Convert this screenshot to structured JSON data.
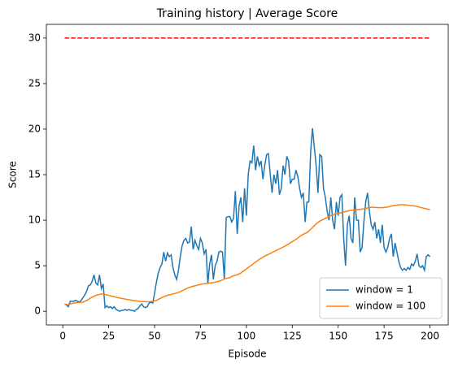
{
  "chart_data": {
    "type": "line",
    "title": "Training history | Average Score",
    "xlabel": "Episode",
    "ylabel": "Score",
    "x": [
      1,
      2,
      3,
      4,
      5,
      6,
      7,
      8,
      9,
      10,
      11,
      12,
      13,
      14,
      15,
      16,
      17,
      18,
      19,
      20,
      21,
      22,
      23,
      24,
      25,
      26,
      27,
      28,
      29,
      30,
      31,
      32,
      33,
      34,
      35,
      36,
      37,
      38,
      39,
      40,
      41,
      42,
      43,
      44,
      45,
      46,
      47,
      48,
      49,
      50,
      51,
      52,
      53,
      54,
      55,
      56,
      57,
      58,
      59,
      60,
      61,
      62,
      63,
      64,
      65,
      66,
      67,
      68,
      69,
      70,
      71,
      72,
      73,
      74,
      75,
      76,
      77,
      78,
      79,
      80,
      81,
      82,
      83,
      84,
      85,
      86,
      87,
      88,
      89,
      90,
      91,
      92,
      93,
      94,
      95,
      96,
      97,
      98,
      99,
      100,
      101,
      102,
      103,
      104,
      105,
      106,
      107,
      108,
      109,
      110,
      111,
      112,
      113,
      114,
      115,
      116,
      117,
      118,
      119,
      120,
      121,
      122,
      123,
      124,
      125,
      126,
      127,
      128,
      129,
      130,
      131,
      132,
      133,
      134,
      135,
      136,
      137,
      138,
      139,
      140,
      141,
      142,
      143,
      144,
      145,
      146,
      147,
      148,
      149,
      150,
      151,
      152,
      153,
      154,
      155,
      156,
      157,
      158,
      159,
      160,
      161,
      162,
      163,
      164,
      165,
      166,
      167,
      168,
      169,
      170,
      171,
      172,
      173,
      174,
      175,
      176,
      177,
      178,
      179,
      180,
      181,
      182,
      183,
      184,
      185,
      186,
      187,
      188,
      189,
      190,
      191,
      192,
      193,
      194,
      195,
      196,
      197,
      198,
      199,
      200
    ],
    "series": [
      {
        "name": "window = 1",
        "color": "#1f77b4",
        "values": [
          0.8,
          0.7,
          0.5,
          1.1,
          1.1,
          1.1,
          1.2,
          1.1,
          1.0,
          1.2,
          1.5,
          1.8,
          2.2,
          2.8,
          2.9,
          3.3,
          4.0,
          3.1,
          2.9,
          4.0,
          2.5,
          3.0,
          0.4,
          0.6,
          0.4,
          0.5,
          0.3,
          0.5,
          0.2,
          0.1,
          0.0,
          0.1,
          0.1,
          0.2,
          0.1,
          0.2,
          0.1,
          0.1,
          0.0,
          0.2,
          0.3,
          0.6,
          0.8,
          0.5,
          0.4,
          0.5,
          0.9,
          1.0,
          0.9,
          2.0,
          3.2,
          4.2,
          4.8,
          5.2,
          6.5,
          5.5,
          6.4,
          6.0,
          6.2,
          4.8,
          4.0,
          3.5,
          4.5,
          6.0,
          7.2,
          7.8,
          8.0,
          7.5,
          7.6,
          9.3,
          6.8,
          7.8,
          7.2,
          6.8,
          8.0,
          7.5,
          6.3,
          6.8,
          3.0,
          5.2,
          6.2,
          3.5,
          5.0,
          5.5,
          6.5,
          6.6,
          6.5,
          3.5,
          10.3,
          10.4,
          10.4,
          9.8,
          10.2,
          13.2,
          8.5,
          11.5,
          12.5,
          9.8,
          13.5,
          10.5,
          15.0,
          16.5,
          16.3,
          18.2,
          15.5,
          17.0,
          16.0,
          16.5,
          14.5,
          16.0,
          17.2,
          17.3,
          15.0,
          13.0,
          15.0,
          14.0,
          15.5,
          12.8,
          13.5,
          16.0,
          15.0,
          17.0,
          16.5,
          14.0,
          14.5,
          14.5,
          15.5,
          14.8,
          13.5,
          12.5,
          13.0,
          9.8,
          12.0,
          12.0,
          17.5,
          20.1,
          18.0,
          16.0,
          13.0,
          17.2,
          17.0,
          13.5,
          12.5,
          11.0,
          10.0,
          12.5,
          10.0,
          9.0,
          12.0,
          10.5,
          12.5,
          12.8,
          8.0,
          5.0,
          9.5,
          10.5,
          8.0,
          7.5,
          12.5,
          10.0,
          10.0,
          6.5,
          7.0,
          9.8,
          12.0,
          13.0,
          11.0,
          9.5,
          9.0,
          9.8,
          8.0,
          9.0,
          7.5,
          9.5,
          7.0,
          6.5,
          7.0,
          8.0,
          8.5,
          6.0,
          7.5,
          6.5,
          5.5,
          4.8,
          4.5,
          4.7,
          4.5,
          4.8,
          4.6,
          5.2,
          5.0,
          5.5,
          6.3,
          5.0,
          4.8,
          5.0,
          4.5,
          6.0,
          6.2,
          6.0
        ]
      },
      {
        "name": "window = 100",
        "color": "#ff7f0e",
        "values": [
          0.8,
          0.75,
          0.7,
          0.8,
          0.85,
          0.9,
          0.92,
          0.95,
          0.96,
          0.98,
          1.0,
          1.1,
          1.2,
          1.3,
          1.45,
          1.55,
          1.65,
          1.75,
          1.8,
          1.85,
          1.9,
          1.9,
          1.85,
          1.8,
          1.75,
          1.7,
          1.65,
          1.6,
          1.55,
          1.5,
          1.45,
          1.42,
          1.38,
          1.35,
          1.3,
          1.27,
          1.24,
          1.2,
          1.18,
          1.15,
          1.12,
          1.1,
          1.08,
          1.06,
          1.05,
          1.04,
          1.05,
          1.08,
          1.1,
          1.15,
          1.2,
          1.3,
          1.4,
          1.5,
          1.6,
          1.68,
          1.75,
          1.8,
          1.85,
          1.9,
          1.95,
          2.0,
          2.08,
          2.16,
          2.25,
          2.35,
          2.45,
          2.55,
          2.62,
          2.7,
          2.75,
          2.8,
          2.85,
          2.9,
          2.95,
          3.0,
          3.02,
          3.05,
          3.07,
          3.1,
          3.12,
          3.15,
          3.2,
          3.25,
          3.3,
          3.35,
          3.45,
          3.55,
          3.6,
          3.65,
          3.7,
          3.8,
          3.9,
          3.95,
          4.0,
          4.1,
          4.2,
          4.35,
          4.5,
          4.65,
          4.8,
          4.95,
          5.1,
          5.25,
          5.4,
          5.55,
          5.7,
          5.82,
          5.95,
          6.05,
          6.15,
          6.25,
          6.35,
          6.45,
          6.55,
          6.65,
          6.75,
          6.85,
          6.95,
          7.05,
          7.15,
          7.28,
          7.4,
          7.52,
          7.65,
          7.78,
          7.9,
          8.05,
          8.2,
          8.35,
          8.45,
          8.55,
          8.65,
          8.8,
          9.0,
          9.2,
          9.4,
          9.6,
          9.75,
          9.9,
          10.0,
          10.1,
          10.2,
          10.3,
          10.4,
          10.5,
          10.6,
          10.65,
          10.7,
          10.75,
          10.8,
          10.85,
          10.9,
          10.95,
          11.0,
          11.05,
          11.08,
          11.1,
          11.12,
          11.15,
          11.18,
          11.2,
          11.22,
          11.25,
          11.3,
          11.35,
          11.4,
          11.42,
          11.42,
          11.4,
          11.4,
          11.38,
          11.38,
          11.38,
          11.4,
          11.42,
          11.45,
          11.5,
          11.55,
          11.6,
          11.62,
          11.65,
          11.68,
          11.7,
          11.7,
          11.7,
          11.68,
          11.65,
          11.62,
          11.6,
          11.58,
          11.55,
          11.5,
          11.45,
          11.4,
          11.35,
          11.3,
          11.25,
          11.2,
          11.15
        ]
      }
    ],
    "hlines": [
      {
        "y": 30,
        "x": [
          1,
          200
        ],
        "color": "#ff0000",
        "style": "dashed"
      }
    ],
    "xlim": [
      -8.95,
      209.95
    ],
    "ylim": [
      -1.5,
      31.5
    ],
    "xticks": [
      0,
      25,
      50,
      75,
      100,
      125,
      150,
      175,
      200
    ],
    "yticks": [
      0,
      5,
      10,
      15,
      20,
      25,
      30
    ],
    "legend": "lower right",
    "grid": false
  }
}
